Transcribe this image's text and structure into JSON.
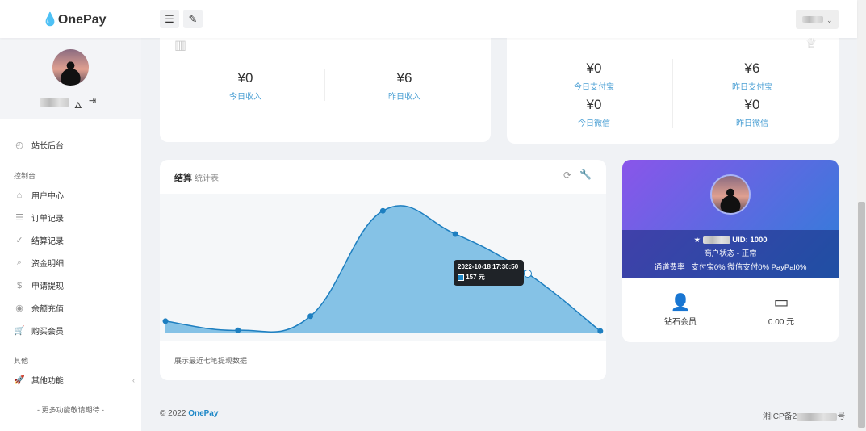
{
  "header": {
    "logo": "OnePay",
    "menu_icon": "menu-icon",
    "theme_icon": "brush-icon"
  },
  "sidebar": {
    "dashboard": "站长后台",
    "section_console": "控制台",
    "items": [
      {
        "label": "用户中心",
        "icon": "⌂"
      },
      {
        "label": "订单记录",
        "icon": "☰"
      },
      {
        "label": "结算记录",
        "icon": "✓"
      },
      {
        "label": "资金明细",
        "icon": "⌕"
      },
      {
        "label": "申请提现",
        "icon": "$"
      },
      {
        "label": "余额充值",
        "icon": "◉"
      },
      {
        "label": "购买会员",
        "icon": "🛒"
      }
    ],
    "section_other": "其他",
    "other": "其他功能",
    "more": "- 更多功能敬请期待 -"
  },
  "income": {
    "today_value": "¥0",
    "today_label": "今日收入",
    "yesterday_value": "¥6",
    "yesterday_label": "昨日收入"
  },
  "channels": {
    "items": [
      {
        "value": "¥0",
        "label": "今日支付宝"
      },
      {
        "value": "¥6",
        "label": "昨日支付宝"
      },
      {
        "value": "¥0",
        "label": "今日微信"
      },
      {
        "value": "¥0",
        "label": "昨日微信"
      }
    ]
  },
  "settlement": {
    "title": "结算",
    "subtitle": "统计表",
    "footer": "展示最近七笔提现数据",
    "tooltip_time": "2022-10-18 17:30:50",
    "tooltip_value": "157 元"
  },
  "chart_data": {
    "type": "area",
    "values": [
      32,
      8,
      45,
      322,
      261,
      157,
      6
    ],
    "unit": "元",
    "ylim": [
      0,
      367
    ],
    "grid": false,
    "color": "#1e7fc0",
    "fill": "#85c2e6"
  },
  "profile": {
    "uid": "UID: 1000",
    "status": "商户状态 - 正常",
    "rates": "通道费率 | 支付宝0% 微信支付0% PayPal0%",
    "member": "钻石会员",
    "balance": "0.00 元"
  },
  "footer": {
    "copyright": "© 2022",
    "brand": "OnePay",
    "icp_prefix": "湘ICP备2",
    "icp_suffix": "号"
  },
  "colors": {
    "accent": "#1e88c7",
    "link": "#4a9fd4"
  }
}
